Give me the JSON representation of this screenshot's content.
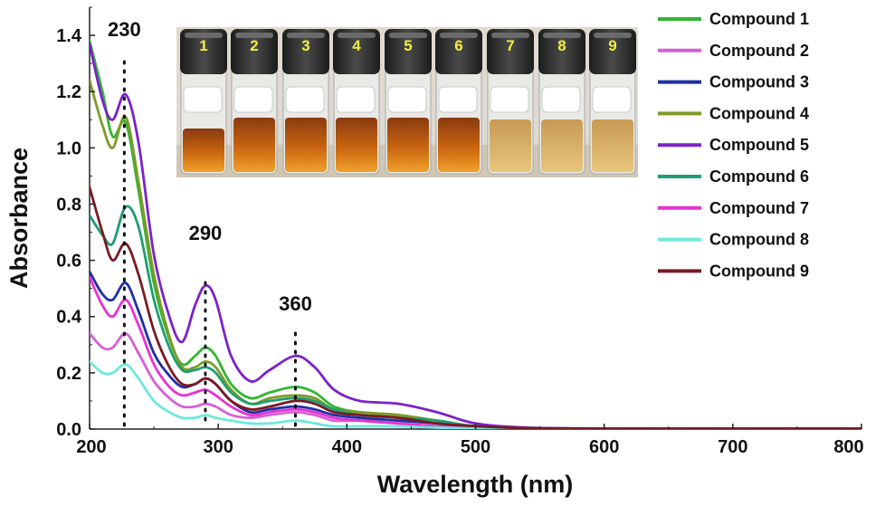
{
  "chart_data": {
    "type": "line",
    "xlabel": "Wavelength (nm)",
    "ylabel": "Absorbance",
    "xlim": [
      200,
      800
    ],
    "ylim": [
      0,
      1.5
    ],
    "xticks": [
      200,
      300,
      400,
      500,
      600,
      700,
      800
    ],
    "xtick_labels": [
      "200",
      "300",
      "400",
      "500",
      "600",
      "700",
      "800"
    ],
    "yticks": [
      0,
      0.2,
      0.4,
      0.6,
      0.8,
      1.0,
      1.2,
      1.4
    ],
    "ytick_labels": [
      "0.0",
      "0.2",
      "0.4",
      "0.6",
      "0.8",
      "1.0",
      "1.2",
      "1.4"
    ],
    "legend_position": "top-right",
    "annotations": [
      {
        "text": "230",
        "x": 227
      },
      {
        "text": "290",
        "x": 290
      },
      {
        "text": "360",
        "x": 360
      }
    ],
    "inset_vial_labels": [
      "1",
      "2",
      "3",
      "4",
      "5",
      "6",
      "7",
      "8",
      "9"
    ],
    "series": [
      {
        "name": "Compound 1",
        "color": "#2fb62f",
        "points": [
          [
            200,
            1.38
          ],
          [
            210,
            1.2
          ],
          [
            218,
            1.04
          ],
          [
            228,
            1.09
          ],
          [
            238,
            0.85
          ],
          [
            250,
            0.52
          ],
          [
            262,
            0.32
          ],
          [
            272,
            0.23
          ],
          [
            282,
            0.26
          ],
          [
            290,
            0.29
          ],
          [
            298,
            0.26
          ],
          [
            310,
            0.16
          ],
          [
            325,
            0.11
          ],
          [
            340,
            0.13
          ],
          [
            360,
            0.15
          ],
          [
            375,
            0.13
          ],
          [
            390,
            0.08
          ],
          [
            410,
            0.06
          ],
          [
            440,
            0.05
          ],
          [
            470,
            0.03
          ],
          [
            500,
            0.01
          ],
          [
            540,
            0.003
          ],
          [
            600,
            0.002
          ],
          [
            700,
            0.002
          ],
          [
            800,
            0.002
          ]
        ]
      },
      {
        "name": "Compound 2",
        "color": "#d660d6",
        "points": [
          [
            200,
            0.34
          ],
          [
            210,
            0.29
          ],
          [
            218,
            0.29
          ],
          [
            228,
            0.34
          ],
          [
            238,
            0.27
          ],
          [
            250,
            0.17
          ],
          [
            262,
            0.11
          ],
          [
            272,
            0.08
          ],
          [
            282,
            0.08
          ],
          [
            290,
            0.09
          ],
          [
            298,
            0.08
          ],
          [
            310,
            0.05
          ],
          [
            325,
            0.04
          ],
          [
            340,
            0.05
          ],
          [
            360,
            0.06
          ],
          [
            375,
            0.05
          ],
          [
            390,
            0.03
          ],
          [
            410,
            0.03
          ],
          [
            440,
            0.02
          ],
          [
            470,
            0.01
          ],
          [
            500,
            0.005
          ],
          [
            540,
            0.002
          ],
          [
            600,
            0.001
          ],
          [
            700,
            0.001
          ],
          [
            800,
            0.001
          ]
        ]
      },
      {
        "name": "Compound 3",
        "color": "#1f2fa6",
        "points": [
          [
            200,
            0.56
          ],
          [
            210,
            0.48
          ],
          [
            218,
            0.46
          ],
          [
            228,
            0.52
          ],
          [
            238,
            0.42
          ],
          [
            250,
            0.27
          ],
          [
            262,
            0.19
          ],
          [
            272,
            0.15
          ],
          [
            282,
            0.16
          ],
          [
            290,
            0.18
          ],
          [
            298,
            0.16
          ],
          [
            310,
            0.1
          ],
          [
            325,
            0.06
          ],
          [
            340,
            0.07
          ],
          [
            360,
            0.08
          ],
          [
            375,
            0.07
          ],
          [
            390,
            0.05
          ],
          [
            410,
            0.04
          ],
          [
            440,
            0.03
          ],
          [
            470,
            0.02
          ],
          [
            500,
            0.01
          ],
          [
            540,
            0.003
          ],
          [
            600,
            0.002
          ],
          [
            700,
            0.002
          ],
          [
            800,
            0.002
          ]
        ]
      },
      {
        "name": "Compound 4",
        "color": "#7f9a2a",
        "points": [
          [
            200,
            1.24
          ],
          [
            210,
            1.08
          ],
          [
            218,
            1.0
          ],
          [
            228,
            1.11
          ],
          [
            238,
            0.88
          ],
          [
            250,
            0.55
          ],
          [
            262,
            0.33
          ],
          [
            272,
            0.22
          ],
          [
            282,
            0.22
          ],
          [
            290,
            0.24
          ],
          [
            298,
            0.22
          ],
          [
            310,
            0.14
          ],
          [
            325,
            0.09
          ],
          [
            340,
            0.11
          ],
          [
            360,
            0.12
          ],
          [
            375,
            0.11
          ],
          [
            390,
            0.07
          ],
          [
            410,
            0.06
          ],
          [
            440,
            0.05
          ],
          [
            470,
            0.03
          ],
          [
            500,
            0.01
          ],
          [
            540,
            0.003
          ],
          [
            600,
            0.002
          ],
          [
            700,
            0.002
          ],
          [
            800,
            0.002
          ]
        ]
      },
      {
        "name": "Compound 5",
        "color": "#7b22c9",
        "points": [
          [
            200,
            1.37
          ],
          [
            210,
            1.17
          ],
          [
            218,
            1.1
          ],
          [
            228,
            1.19
          ],
          [
            238,
            1.02
          ],
          [
            250,
            0.62
          ],
          [
            262,
            0.4
          ],
          [
            272,
            0.31
          ],
          [
            282,
            0.44
          ],
          [
            290,
            0.51
          ],
          [
            298,
            0.46
          ],
          [
            310,
            0.26
          ],
          [
            325,
            0.17
          ],
          [
            340,
            0.21
          ],
          [
            360,
            0.26
          ],
          [
            375,
            0.22
          ],
          [
            390,
            0.14
          ],
          [
            410,
            0.1
          ],
          [
            440,
            0.09
          ],
          [
            470,
            0.06
          ],
          [
            500,
            0.02
          ],
          [
            540,
            0.005
          ],
          [
            600,
            0.002
          ],
          [
            700,
            0.002
          ],
          [
            800,
            0.002
          ]
        ]
      },
      {
        "name": "Compound 6",
        "color": "#1f9e73",
        "points": [
          [
            200,
            0.76
          ],
          [
            210,
            0.69
          ],
          [
            218,
            0.66
          ],
          [
            228,
            0.79
          ],
          [
            238,
            0.72
          ],
          [
            250,
            0.46
          ],
          [
            262,
            0.29
          ],
          [
            272,
            0.21
          ],
          [
            282,
            0.21
          ],
          [
            290,
            0.22
          ],
          [
            298,
            0.2
          ],
          [
            310,
            0.13
          ],
          [
            325,
            0.09
          ],
          [
            340,
            0.1
          ],
          [
            360,
            0.11
          ],
          [
            375,
            0.1
          ],
          [
            390,
            0.07
          ],
          [
            410,
            0.05
          ],
          [
            440,
            0.04
          ],
          [
            470,
            0.03
          ],
          [
            500,
            0.01
          ],
          [
            540,
            0.003
          ],
          [
            600,
            0.002
          ],
          [
            700,
            0.002
          ],
          [
            800,
            0.002
          ]
        ]
      },
      {
        "name": "Compound 7",
        "color": "#e632d2",
        "points": [
          [
            200,
            0.54
          ],
          [
            210,
            0.44
          ],
          [
            218,
            0.4
          ],
          [
            228,
            0.46
          ],
          [
            238,
            0.37
          ],
          [
            250,
            0.23
          ],
          [
            262,
            0.15
          ],
          [
            272,
            0.12
          ],
          [
            282,
            0.13
          ],
          [
            290,
            0.14
          ],
          [
            298,
            0.12
          ],
          [
            310,
            0.08
          ],
          [
            325,
            0.05
          ],
          [
            340,
            0.06
          ],
          [
            360,
            0.07
          ],
          [
            375,
            0.06
          ],
          [
            390,
            0.04
          ],
          [
            410,
            0.03
          ],
          [
            440,
            0.02
          ],
          [
            470,
            0.01
          ],
          [
            500,
            0.005
          ],
          [
            540,
            0.002
          ],
          [
            600,
            0.001
          ],
          [
            700,
            0.001
          ],
          [
            800,
            0.001
          ]
        ]
      },
      {
        "name": "Compound 8",
        "color": "#6ee8dc",
        "points": [
          [
            200,
            0.24
          ],
          [
            210,
            0.2
          ],
          [
            218,
            0.2
          ],
          [
            228,
            0.23
          ],
          [
            238,
            0.18
          ],
          [
            250,
            0.1
          ],
          [
            262,
            0.06
          ],
          [
            272,
            0.04
          ],
          [
            282,
            0.04
          ],
          [
            290,
            0.05
          ],
          [
            298,
            0.04
          ],
          [
            310,
            0.03
          ],
          [
            325,
            0.02
          ],
          [
            340,
            0.02
          ],
          [
            360,
            0.03
          ],
          [
            375,
            0.02
          ],
          [
            390,
            0.01
          ],
          [
            410,
            0.01
          ],
          [
            440,
            0.01
          ],
          [
            470,
            0.005
          ],
          [
            500,
            0.002
          ],
          [
            540,
            0.001
          ],
          [
            600,
            0.001
          ],
          [
            700,
            0.001
          ],
          [
            800,
            0.001
          ]
        ]
      },
      {
        "name": "Compound 9",
        "color": "#7a1a22",
        "points": [
          [
            200,
            0.86
          ],
          [
            210,
            0.7
          ],
          [
            218,
            0.6
          ],
          [
            228,
            0.66
          ],
          [
            238,
            0.55
          ],
          [
            250,
            0.35
          ],
          [
            262,
            0.22
          ],
          [
            272,
            0.16
          ],
          [
            282,
            0.16
          ],
          [
            290,
            0.18
          ],
          [
            298,
            0.16
          ],
          [
            310,
            0.1
          ],
          [
            325,
            0.07
          ],
          [
            340,
            0.08
          ],
          [
            360,
            0.1
          ],
          [
            375,
            0.09
          ],
          [
            390,
            0.06
          ],
          [
            410,
            0.05
          ],
          [
            440,
            0.04
          ],
          [
            470,
            0.02
          ],
          [
            500,
            0.01
          ],
          [
            540,
            0.003
          ],
          [
            600,
            0.002
          ],
          [
            700,
            0.002
          ],
          [
            800,
            0.002
          ]
        ]
      }
    ]
  }
}
